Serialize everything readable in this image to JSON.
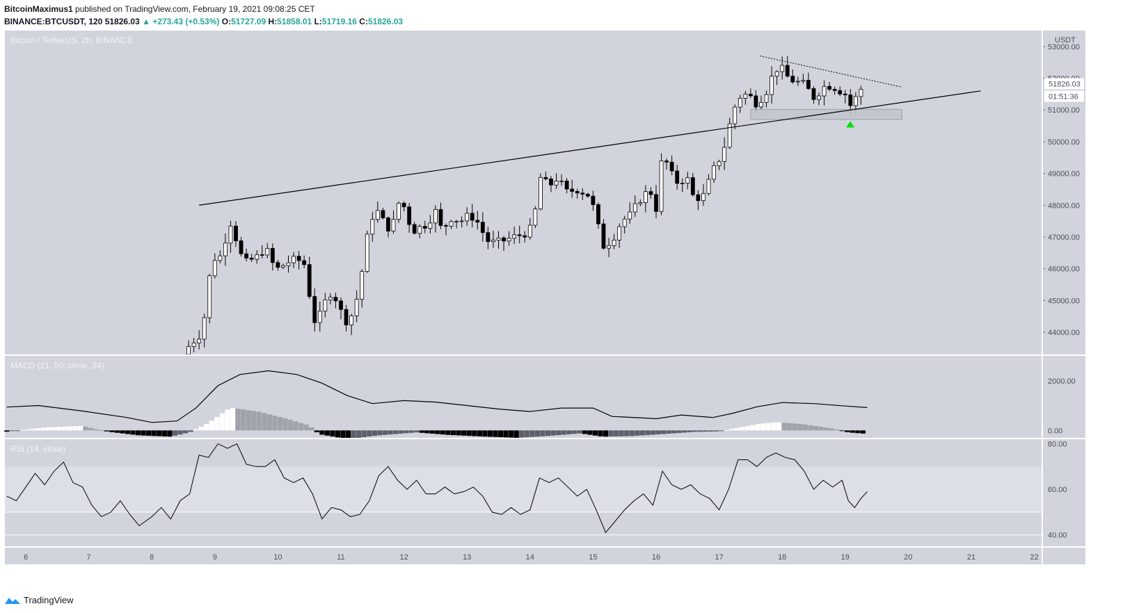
{
  "header": {
    "author": "BitcoinMaximus1",
    "published": "published on TradingView.com, February 19, 2021 09:08:25 CET",
    "symbol": "BINANCE:BTCUSDT, 120",
    "last": "51826.03",
    "change": "▲ +273.43 (+0.53%)",
    "o_label": "O:",
    "o": "51727.09",
    "h_label": "H:",
    "h": "51858.01",
    "l_label": "L:",
    "l": "51719.16",
    "c_label": "C:",
    "c": "51826.03"
  },
  "footer": {
    "brand": "TradingView"
  },
  "colors": {
    "pane_bg": "#d1d4dc",
    "rsi_band": "#dcdfe6",
    "line": "#000000",
    "up_body": "#ffffff",
    "down_body": "#000000",
    "marker": "#00e000"
  },
  "chart_data": [
    {
      "type": "candlestick",
      "title": "Bitcoin / TetherUS, 2h, BINANCE",
      "currency": "USDT",
      "x_ticks": [
        "6",
        "7",
        "8",
        "9",
        "10",
        "11",
        "12",
        "13",
        "14",
        "15",
        "16",
        "17",
        "18",
        "19",
        "20",
        "21",
        "22"
      ],
      "ylim": [
        43300,
        53500
      ],
      "y_ticks": [
        44000,
        45000,
        46000,
        47000,
        48000,
        49000,
        50000,
        51000,
        52000,
        53000
      ],
      "y_tick_labels": [
        "44000.00",
        "45000.00",
        "46000.00",
        "47000.00",
        "48000.00",
        "49000.00",
        "50000.00",
        "51000.00",
        "52000.00",
        "53000.00"
      ],
      "last_price_label": "51826.03",
      "countdown_label": "01:51:36",
      "close_path": [
        [
          8.5,
          43300
        ],
        [
          8.6,
          43600
        ],
        [
          8.75,
          43900
        ],
        [
          8.85,
          44600
        ],
        [
          8.95,
          46300
        ],
        [
          9.1,
          46400
        ],
        [
          9.2,
          47200
        ],
        [
          9.3,
          47700
        ],
        [
          9.35,
          46600
        ],
        [
          9.5,
          46200
        ],
        [
          9.7,
          46400
        ],
        [
          9.8,
          46700
        ],
        [
          9.9,
          46200
        ],
        [
          10.0,
          46000
        ],
        [
          10.15,
          46200
        ],
        [
          10.3,
          46300
        ],
        [
          10.45,
          46100
        ],
        [
          10.55,
          44300
        ],
        [
          10.7,
          44600
        ],
        [
          10.8,
          45300
        ],
        [
          10.95,
          45000
        ],
        [
          11.05,
          44300
        ],
        [
          11.2,
          44600
        ],
        [
          11.3,
          45500
        ],
        [
          11.45,
          47400
        ],
        [
          11.55,
          47900
        ],
        [
          11.7,
          47400
        ],
        [
          11.8,
          47200
        ],
        [
          11.85,
          47600
        ],
        [
          11.95,
          48300
        ],
        [
          12.05,
          47600
        ],
        [
          12.15,
          47200
        ],
        [
          12.35,
          47400
        ],
        [
          12.5,
          47800
        ],
        [
          12.6,
          47200
        ],
        [
          12.75,
          47600
        ],
        [
          12.9,
          47500
        ],
        [
          13.05,
          47700
        ],
        [
          13.2,
          47400
        ],
        [
          13.3,
          46900
        ],
        [
          13.45,
          46800
        ],
        [
          13.6,
          46900
        ],
        [
          13.75,
          47000
        ],
        [
          13.9,
          47100
        ],
        [
          14.05,
          47300
        ],
        [
          14.15,
          48900
        ],
        [
          14.3,
          48600
        ],
        [
          14.45,
          48900
        ],
        [
          14.55,
          48400
        ],
        [
          14.75,
          48500
        ],
        [
          14.95,
          48300
        ],
        [
          15.05,
          47600
        ],
        [
          15.15,
          46700
        ],
        [
          15.3,
          46900
        ],
        [
          15.45,
          47500
        ],
        [
          15.6,
          47700
        ],
        [
          15.75,
          48200
        ],
        [
          15.9,
          48500
        ],
        [
          16.0,
          47900
        ],
        [
          16.1,
          49600
        ],
        [
          16.2,
          49200
        ],
        [
          16.3,
          48700
        ],
        [
          16.4,
          48800
        ],
        [
          16.5,
          48800
        ],
        [
          16.6,
          48200
        ],
        [
          16.75,
          48300
        ],
        [
          16.85,
          48800
        ],
        [
          16.95,
          49300
        ],
        [
          17.05,
          49600
        ],
        [
          17.2,
          50800
        ],
        [
          17.3,
          51400
        ],
        [
          17.45,
          51500
        ],
        [
          17.6,
          51200
        ],
        [
          17.75,
          51600
        ],
        [
          17.85,
          52100
        ],
        [
          17.95,
          52400
        ],
        [
          18.1,
          52000
        ],
        [
          18.2,
          51900
        ],
        [
          18.35,
          51800
        ],
        [
          18.5,
          51400
        ],
        [
          18.6,
          51600
        ],
        [
          18.7,
          51800
        ],
        [
          18.85,
          51700
        ],
        [
          19.0,
          51500
        ],
        [
          19.05,
          51100
        ],
        [
          19.12,
          51200
        ],
        [
          19.2,
          51500
        ],
        [
          19.3,
          51826
        ]
      ],
      "resistance_line": {
        "x": [
          8.75,
          21.15
        ],
        "y": [
          48000,
          51600
        ]
      },
      "descending_line": {
        "x": [
          17.65,
          19.9
        ],
        "y": [
          52700,
          51720
        ]
      },
      "support_zone": {
        "x": [
          17.5,
          19.9
        ],
        "y": [
          50700,
          51020
        ]
      },
      "marker": {
        "x": 19.08,
        "y": 50560,
        "shape": "triangle-up"
      }
    },
    {
      "type": "line",
      "title": "MACD (21, 50, close, 24)",
      "y_ticks": [
        0,
        2000
      ],
      "y_tick_labels": [
        "0.00",
        "2000.00"
      ],
      "ylim": [
        -300,
        3000
      ],
      "macd_line": [
        [
          5.7,
          940
        ],
        [
          6.2,
          1000
        ],
        [
          6.9,
          780
        ],
        [
          7.6,
          520
        ],
        [
          8.0,
          320
        ],
        [
          8.4,
          380
        ],
        [
          8.7,
          900
        ],
        [
          9.05,
          1800
        ],
        [
          9.4,
          2250
        ],
        [
          9.85,
          2400
        ],
        [
          10.3,
          2250
        ],
        [
          10.7,
          1900
        ],
        [
          11.1,
          1400
        ],
        [
          11.5,
          1080
        ],
        [
          12.0,
          1200
        ],
        [
          12.5,
          1140
        ],
        [
          13.0,
          1000
        ],
        [
          13.5,
          860
        ],
        [
          14.0,
          760
        ],
        [
          14.5,
          900
        ],
        [
          15.0,
          900
        ],
        [
          15.3,
          560
        ],
        [
          15.8,
          500
        ],
        [
          16.0,
          470
        ],
        [
          16.4,
          620
        ],
        [
          16.9,
          520
        ],
        [
          17.2,
          680
        ],
        [
          17.6,
          950
        ],
        [
          18.0,
          1120
        ],
        [
          18.5,
          1080
        ],
        [
          19.0,
          980
        ],
        [
          19.35,
          920
        ]
      ],
      "histogram_envelope": [
        [
          5.7,
          -50
        ],
        [
          6.3,
          120
        ],
        [
          6.9,
          180
        ],
        [
          7.3,
          -50
        ],
        [
          7.8,
          -200
        ],
        [
          8.3,
          -250
        ],
        [
          8.6,
          -80
        ],
        [
          8.9,
          300
        ],
        [
          9.25,
          920
        ],
        [
          9.7,
          750
        ],
        [
          10.1,
          500
        ],
        [
          10.5,
          200
        ],
        [
          10.65,
          -150
        ],
        [
          11.1,
          -350
        ],
        [
          11.6,
          -200
        ],
        [
          12.2,
          -80
        ],
        [
          12.7,
          -180
        ],
        [
          13.3,
          -250
        ],
        [
          13.8,
          -300
        ],
        [
          14.3,
          -220
        ],
        [
          14.8,
          -120
        ],
        [
          15.15,
          -250
        ],
        [
          15.6,
          -230
        ],
        [
          16.1,
          -150
        ],
        [
          16.6,
          -60
        ],
        [
          17.0,
          -40
        ],
        [
          17.2,
          60
        ],
        [
          17.6,
          250
        ],
        [
          17.9,
          330
        ],
        [
          18.3,
          260
        ],
        [
          18.8,
          80
        ],
        [
          19.05,
          -80
        ],
        [
          19.35,
          -140
        ]
      ]
    },
    {
      "type": "line",
      "title": "RSI (14, close)",
      "y_ticks": [
        40,
        60,
        80
      ],
      "y_tick_labels": [
        "40.00",
        "60.00",
        "80.00"
      ],
      "ylim": [
        35,
        82
      ],
      "band": [
        50,
        70
      ],
      "values": [
        [
          5.7,
          57
        ],
        [
          5.85,
          55
        ],
        [
          6.0,
          61
        ],
        [
          6.15,
          67
        ],
        [
          6.3,
          62
        ],
        [
          6.45,
          68
        ],
        [
          6.6,
          72
        ],
        [
          6.75,
          63
        ],
        [
          6.9,
          61
        ],
        [
          7.05,
          53
        ],
        [
          7.2,
          48
        ],
        [
          7.35,
          50
        ],
        [
          7.5,
          55
        ],
        [
          7.65,
          49
        ],
        [
          7.8,
          44
        ],
        [
          8.0,
          48
        ],
        [
          8.15,
          52
        ],
        [
          8.3,
          47
        ],
        [
          8.45,
          55
        ],
        [
          8.6,
          58
        ],
        [
          8.75,
          75
        ],
        [
          8.9,
          74
        ],
        [
          9.05,
          80
        ],
        [
          9.2,
          78
        ],
        [
          9.35,
          80
        ],
        [
          9.5,
          71
        ],
        [
          9.65,
          70
        ],
        [
          9.8,
          70
        ],
        [
          9.95,
          73
        ],
        [
          10.1,
          65
        ],
        [
          10.25,
          63
        ],
        [
          10.4,
          65
        ],
        [
          10.55,
          58
        ],
        [
          10.7,
          47
        ],
        [
          10.85,
          52
        ],
        [
          11.0,
          51
        ],
        [
          11.15,
          48
        ],
        [
          11.3,
          49
        ],
        [
          11.45,
          55
        ],
        [
          11.6,
          66
        ],
        [
          11.75,
          70
        ],
        [
          11.9,
          64
        ],
        [
          12.05,
          60
        ],
        [
          12.2,
          64
        ],
        [
          12.35,
          58
        ],
        [
          12.5,
          58
        ],
        [
          12.65,
          61
        ],
        [
          12.8,
          58
        ],
        [
          12.95,
          59
        ],
        [
          13.1,
          61
        ],
        [
          13.25,
          57
        ],
        [
          13.4,
          50
        ],
        [
          13.55,
          49
        ],
        [
          13.7,
          52
        ],
        [
          13.85,
          49
        ],
        [
          14.0,
          51
        ],
        [
          14.15,
          65
        ],
        [
          14.3,
          63
        ],
        [
          14.45,
          65
        ],
        [
          14.6,
          61
        ],
        [
          14.75,
          57
        ],
        [
          14.9,
          60
        ],
        [
          15.05,
          51
        ],
        [
          15.2,
          41
        ],
        [
          15.35,
          46
        ],
        [
          15.5,
          51
        ],
        [
          15.65,
          55
        ],
        [
          15.8,
          58
        ],
        [
          15.95,
          53
        ],
        [
          16.1,
          68
        ],
        [
          16.25,
          62
        ],
        [
          16.4,
          60
        ],
        [
          16.55,
          62
        ],
        [
          16.7,
          58
        ],
        [
          16.85,
          56
        ],
        [
          17.0,
          51
        ],
        [
          17.15,
          60
        ],
        [
          17.3,
          73
        ],
        [
          17.45,
          73
        ],
        [
          17.6,
          70
        ],
        [
          17.75,
          74
        ],
        [
          17.9,
          76
        ],
        [
          18.05,
          74
        ],
        [
          18.2,
          73
        ],
        [
          18.35,
          68
        ],
        [
          18.5,
          60
        ],
        [
          18.65,
          64
        ],
        [
          18.8,
          61
        ],
        [
          18.95,
          64
        ],
        [
          19.05,
          55
        ],
        [
          19.15,
          52
        ],
        [
          19.25,
          56
        ],
        [
          19.35,
          59
        ]
      ]
    }
  ]
}
